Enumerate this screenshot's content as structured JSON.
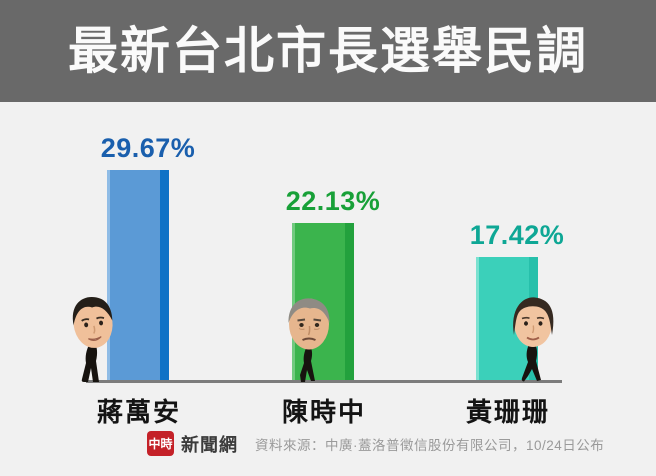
{
  "header": {
    "title": "最新台北市長選舉民調"
  },
  "chart_data": {
    "type": "bar",
    "title": "最新台北市長選舉民調",
    "categories": [
      "蔣萬安",
      "陳時中",
      "黃珊珊"
    ],
    "values": [
      29.67,
      22.13,
      17.42
    ],
    "value_labels": [
      "29.67%",
      "22.13%",
      "17.42%"
    ],
    "unit": "%",
    "ylim": [
      0,
      30
    ],
    "grid": false,
    "legend": false,
    "bar_colors": [
      "#5b9ad6",
      "#3bb44d",
      "#3bd0ba"
    ],
    "bar_edge_colors": [
      "#0e72c6",
      "#23a13d",
      "#27c0ab"
    ],
    "bar_highlight_colors": [
      "#9cc4ea",
      "#7fd08c",
      "#8ce5d6"
    ],
    "value_label_colors": [
      "#1a5fad",
      "#18a038",
      "#0ea795"
    ]
  },
  "footer": {
    "brand_box": "中時",
    "brand_name": "新聞網",
    "source": "資料來源：中廣·蓋洛普徵信股份有限公司，10/24日公布"
  },
  "colors": {
    "header-bg": "#696969",
    "page-bg": "#f1f1f1",
    "title-color": "#fafafa",
    "baseline-color": "#7c7c7c",
    "name-color": "#141414",
    "brand-red": "#c42128",
    "brand-name-color": "#3b3b3b",
    "source-color": "#9a9a9a"
  }
}
